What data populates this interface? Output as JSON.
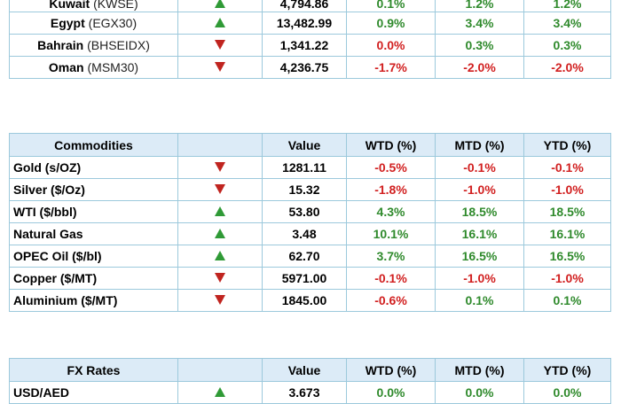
{
  "indices": [
    {
      "name": "Kuwait",
      "code": "(KWSE)",
      "direction": "up",
      "value": "4,794.86",
      "wtd": "0.1%",
      "mtd": "1.2%",
      "ytd": "1.2%",
      "wtd_sign": "pos",
      "mtd_sign": "pos",
      "ytd_sign": "pos"
    },
    {
      "name": "Egypt",
      "code": "(EGX30)",
      "direction": "up",
      "value": "13,482.99",
      "wtd": "0.9%",
      "mtd": "3.4%",
      "ytd": "3.4%",
      "wtd_sign": "pos",
      "mtd_sign": "pos",
      "ytd_sign": "pos"
    },
    {
      "name": "Bahrain",
      "code": "(BHSEIDX)",
      "direction": "down",
      "value": "1,341.22",
      "wtd": "0.0%",
      "mtd": "0.3%",
      "ytd": "0.3%",
      "wtd_sign": "neg",
      "mtd_sign": "pos",
      "ytd_sign": "pos"
    },
    {
      "name": "Oman",
      "code": "(MSM30)",
      "direction": "down",
      "value": "4,236.75",
      "wtd": "-1.7%",
      "mtd": "-2.0%",
      "ytd": "-2.0%",
      "wtd_sign": "neg",
      "mtd_sign": "neg",
      "ytd_sign": "neg"
    }
  ],
  "commodities": {
    "header": {
      "label": "Commodities",
      "value": "Value",
      "wtd": "WTD (%)",
      "mtd": "MTD (%)",
      "ytd": "YTD (%)"
    },
    "rows": [
      {
        "name": "Gold (s/OZ)",
        "direction": "down",
        "value": "1281.11",
        "wtd": "-0.5%",
        "mtd": "-0.1%",
        "ytd": "-0.1%",
        "wtd_sign": "neg",
        "mtd_sign": "neg",
        "ytd_sign": "neg"
      },
      {
        "name": "Silver ($/Oz)",
        "direction": "down",
        "value": "15.32",
        "wtd": "-1.8%",
        "mtd": "-1.0%",
        "ytd": "-1.0%",
        "wtd_sign": "neg",
        "mtd_sign": "neg",
        "ytd_sign": "neg"
      },
      {
        "name": "WTI ($/bbl)",
        "direction": "up",
        "value": "53.80",
        "wtd": "4.3%",
        "mtd": "18.5%",
        "ytd": "18.5%",
        "wtd_sign": "pos",
        "mtd_sign": "pos",
        "ytd_sign": "pos"
      },
      {
        "name": "Natural Gas",
        "direction": "up",
        "value": "3.48",
        "wtd": "10.1%",
        "mtd": "16.1%",
        "ytd": "16.1%",
        "wtd_sign": "pos",
        "mtd_sign": "pos",
        "ytd_sign": "pos"
      },
      {
        "name": "OPEC Oil ($/bl)",
        "direction": "up",
        "value": "62.70",
        "wtd": "3.7%",
        "mtd": "16.5%",
        "ytd": "16.5%",
        "wtd_sign": "pos",
        "mtd_sign": "pos",
        "ytd_sign": "pos"
      },
      {
        "name": "Copper ($/MT)",
        "direction": "down",
        "value": "5971.00",
        "wtd": "-0.1%",
        "mtd": "-1.0%",
        "ytd": "-1.0%",
        "wtd_sign": "neg",
        "mtd_sign": "neg",
        "ytd_sign": "neg"
      },
      {
        "name": "Aluminium ($/MT)",
        "direction": "down",
        "value": "1845.00",
        "wtd": "-0.6%",
        "mtd": "0.1%",
        "ytd": "0.1%",
        "wtd_sign": "neg",
        "mtd_sign": "pos",
        "ytd_sign": "pos"
      }
    ]
  },
  "fx": {
    "header": {
      "label": "FX Rates",
      "value": "Value",
      "wtd": "WTD (%)",
      "mtd": "MTD (%)",
      "ytd": "YTD (%)"
    },
    "rows": [
      {
        "name": "USD/AED",
        "direction": "up",
        "value": "3.673",
        "wtd": "0.0%",
        "mtd": "0.0%",
        "ytd": "0.0%",
        "wtd_sign": "pos",
        "mtd_sign": "pos",
        "ytd_sign": "pos"
      }
    ]
  },
  "colors": {
    "positive": "#2f8a2c",
    "negative": "#d11f1f",
    "header_bg": "#dcebf7",
    "border": "#9cc9dc"
  }
}
